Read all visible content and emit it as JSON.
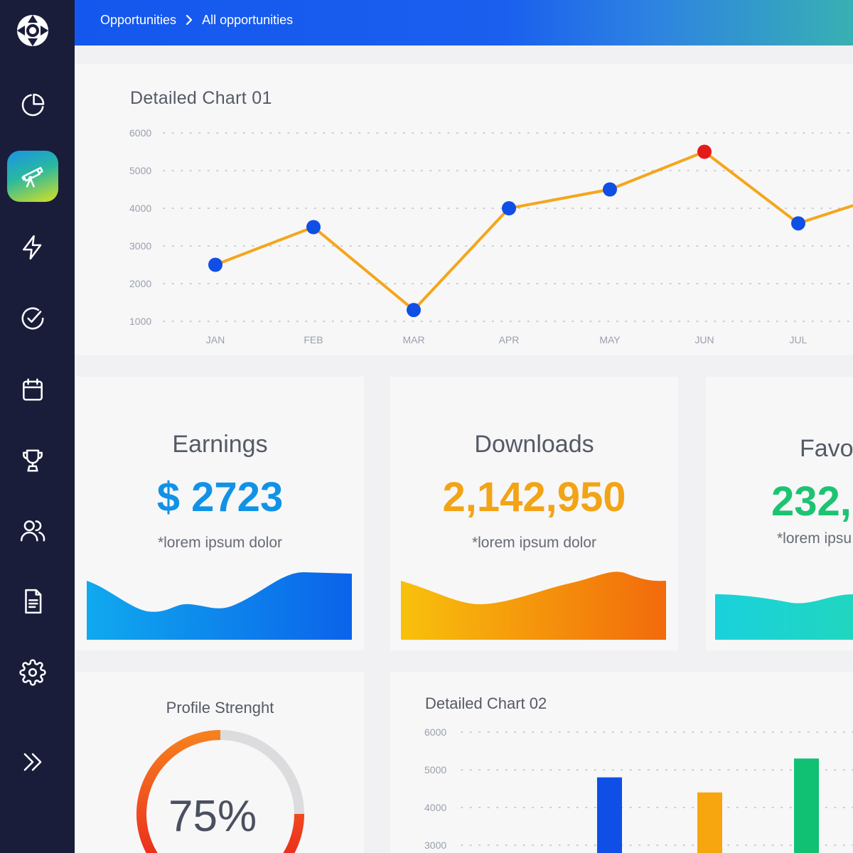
{
  "breadcrumb": {
    "parent": "Opportunities",
    "current": "All opportunities"
  },
  "sidebar": {
    "items": [
      {
        "icon": "pie-chart-icon"
      },
      {
        "icon": "telescope-icon",
        "active": true
      },
      {
        "icon": "lightning-icon"
      },
      {
        "icon": "check-circle-icon"
      },
      {
        "icon": "calendar-icon"
      },
      {
        "icon": "trophy-icon"
      },
      {
        "icon": "users-icon"
      },
      {
        "icon": "document-icon"
      },
      {
        "icon": "gear-icon"
      },
      {
        "icon": "double-chevron-right-icon"
      }
    ]
  },
  "chart1": {
    "title": "Detailed Chart 01",
    "chart_data": {
      "type": "line",
      "categories": [
        "JAN",
        "FEB",
        "MAR",
        "APR",
        "MAY",
        "JUN",
        "JUL"
      ],
      "values": [
        2500,
        3500,
        1300,
        4000,
        4500,
        5500,
        3600
      ],
      "highlight_index": 5,
      "yticks": [
        1000,
        2000,
        3000,
        4000,
        5000,
        6000
      ],
      "ylim": [
        1000,
        6000
      ],
      "line_color": "#f4a61b",
      "point_color": "#0f4fe6",
      "highlight_color": "#e51b1b"
    }
  },
  "stats": {
    "earnings": {
      "label": "Earnings",
      "value": "$ 2723",
      "note": "*lorem ipsum dolor",
      "color": "#1292e6"
    },
    "downloads": {
      "label": "Downloads",
      "value": "2,142,950",
      "note": "*lorem ipsum dolor",
      "color": "#f2a416"
    },
    "favorites": {
      "label": "Favor",
      "value": "232,",
      "note": "*lorem ipsu",
      "color": "#1cc472"
    }
  },
  "profile": {
    "title": "Profile Strenght",
    "value_text": "75%",
    "percent": 75
  },
  "chart2": {
    "title": "Detailed Chart 02",
    "chart_data": {
      "type": "bar",
      "yticks": [
        3000,
        4000,
        5000,
        6000
      ],
      "values": [
        4800,
        4400,
        5300
      ],
      "colors": [
        "#0f4fe6",
        "#f7a60f",
        "#11c173"
      ]
    }
  }
}
